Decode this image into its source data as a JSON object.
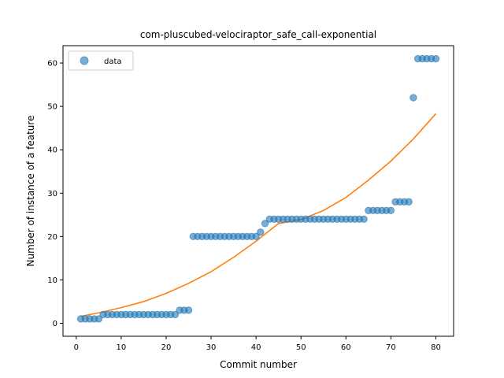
{
  "chart_data": {
    "type": "scatter",
    "title": "com-pluscubed-velociraptor_safe_call-exponential",
    "xlabel": "Commit number",
    "ylabel": "Number of instance of a feature",
    "xlim": [
      -2.95,
      83.95
    ],
    "ylim": [
      -3.0,
      64.0
    ],
    "xticks": [
      0,
      10,
      20,
      30,
      40,
      50,
      60,
      70,
      80
    ],
    "yticks": [
      0,
      10,
      20,
      30,
      40,
      50,
      60
    ],
    "grid": false,
    "legend": {
      "placement": "top-left",
      "entries": [
        "data"
      ]
    },
    "colors": {
      "data": "#1f77b4",
      "fit": "#ff7f0e"
    },
    "series": [
      {
        "name": "data",
        "kind": "scatter",
        "x": [
          1,
          2,
          3,
          4,
          5,
          6,
          7,
          8,
          9,
          10,
          11,
          12,
          13,
          14,
          15,
          16,
          17,
          18,
          19,
          20,
          21,
          22,
          23,
          24,
          25,
          26,
          27,
          28,
          29,
          30,
          31,
          32,
          33,
          34,
          35,
          36,
          37,
          38,
          39,
          40,
          41,
          42,
          43,
          44,
          45,
          46,
          47,
          48,
          49,
          50,
          51,
          52,
          53,
          54,
          55,
          56,
          57,
          58,
          59,
          60,
          61,
          62,
          63,
          64,
          65,
          66,
          67,
          68,
          69,
          70,
          71,
          72,
          73,
          74,
          75,
          76,
          77,
          78,
          79,
          80
        ],
        "y": [
          1,
          1,
          1,
          1,
          1,
          2,
          2,
          2,
          2,
          2,
          2,
          2,
          2,
          2,
          2,
          2,
          2,
          2,
          2,
          2,
          2,
          2,
          3,
          3,
          3,
          20,
          20,
          20,
          20,
          20,
          20,
          20,
          20,
          20,
          20,
          20,
          20,
          20,
          20,
          20,
          21,
          23,
          24,
          24,
          24,
          24,
          24,
          24,
          24,
          24,
          24,
          24,
          24,
          24,
          24,
          24,
          24,
          24,
          24,
          24,
          24,
          24,
          24,
          24,
          26,
          26,
          26,
          26,
          26,
          26,
          28,
          28,
          28,
          28,
          52,
          61,
          61,
          61,
          61,
          61
        ]
      },
      {
        "kind": "line",
        "x": [
          1,
          5,
          10,
          15,
          20,
          25,
          30,
          35,
          40,
          45,
          50,
          55,
          60,
          65,
          70,
          75,
          80
        ],
        "y": [
          1.6,
          2.4,
          3.6,
          5.0,
          6.9,
          9.2,
          11.9,
          15.2,
          18.9,
          23.0,
          23.9,
          26.0,
          29.0,
          33.0,
          37.4,
          42.5,
          48.3
        ]
      }
    ]
  }
}
